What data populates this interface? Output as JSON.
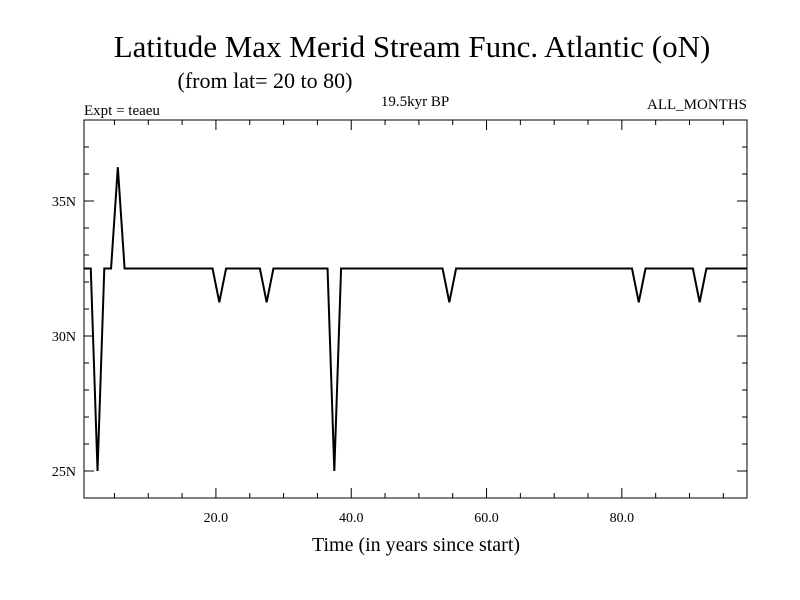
{
  "chart_data": {
    "type": "line",
    "title": "Latitude Max Merid Stream Func. Atlantic (oN)",
    "subtitle": "(from lat= 20 to 80)",
    "annotations": {
      "left": "Expt = teaeu",
      "center": "19.5kyr BP",
      "right": "ALL_MONTHS"
    },
    "xlabel": "Time (in years since start)",
    "ylabel": "",
    "xlim": [
      0.5,
      98.5
    ],
    "ylim": [
      24,
      38
    ],
    "x_ticks": [
      20,
      40,
      60,
      80
    ],
    "x_tick_labels": [
      "20.0",
      "40.0",
      "60.0",
      "80.0"
    ],
    "y_ticks": [
      25,
      30,
      35
    ],
    "y_tick_labels": [
      "25N",
      "30N",
      "35N"
    ],
    "grid": false,
    "series": [
      {
        "x": [
          0.5,
          1.5,
          2.5,
          3.5,
          4.5,
          5.5,
          6.5,
          7.5,
          8.5,
          9.5,
          10.5,
          11.5,
          12.5,
          13.5,
          14.5,
          15.5,
          16.5,
          17.5,
          18.5,
          19.5,
          20.5,
          21.5,
          22.5,
          23.5,
          24.5,
          25.5,
          26.5,
          27.5,
          28.5,
          29.5,
          30.5,
          31.5,
          32.5,
          33.5,
          34.5,
          35.5,
          36.5,
          37.5,
          38.5,
          39.5,
          40.5,
          41.5,
          42.5,
          43.5,
          44.5,
          45.5,
          46.5,
          47.5,
          48.5,
          49.5,
          50.5,
          51.5,
          52.5,
          53.5,
          54.5,
          55.5,
          56.5,
          57.5,
          58.5,
          59.5,
          60.5,
          61.5,
          62.5,
          63.5,
          64.5,
          65.5,
          66.5,
          67.5,
          68.5,
          69.5,
          70.5,
          71.5,
          72.5,
          73.5,
          74.5,
          75.5,
          76.5,
          77.5,
          78.5,
          79.5,
          80.5,
          81.5,
          82.5,
          83.5,
          84.5,
          85.5,
          86.5,
          87.5,
          88.5,
          89.5,
          90.5,
          91.5,
          92.5,
          93.5,
          94.5,
          95.5,
          96.5,
          97.5,
          98.5
        ],
        "y": [
          32.5,
          32.5,
          25.0,
          32.5,
          32.5,
          36.25,
          32.5,
          32.5,
          32.5,
          32.5,
          32.5,
          32.5,
          32.5,
          32.5,
          32.5,
          32.5,
          32.5,
          32.5,
          32.5,
          32.5,
          31.25,
          32.5,
          32.5,
          32.5,
          32.5,
          32.5,
          32.5,
          31.25,
          32.5,
          32.5,
          32.5,
          32.5,
          32.5,
          32.5,
          32.5,
          32.5,
          32.5,
          25.0,
          32.5,
          32.5,
          32.5,
          32.5,
          32.5,
          32.5,
          32.5,
          32.5,
          32.5,
          32.5,
          32.5,
          32.5,
          32.5,
          32.5,
          32.5,
          32.5,
          31.25,
          32.5,
          32.5,
          32.5,
          32.5,
          32.5,
          32.5,
          32.5,
          32.5,
          32.5,
          32.5,
          32.5,
          32.5,
          32.5,
          32.5,
          32.5,
          32.5,
          32.5,
          32.5,
          32.5,
          32.5,
          32.5,
          32.5,
          32.5,
          32.5,
          32.5,
          32.5,
          32.5,
          31.25,
          32.5,
          32.5,
          32.5,
          32.5,
          32.5,
          32.5,
          32.5,
          32.5,
          31.25,
          32.5,
          32.5,
          32.5,
          32.5,
          32.5,
          32.5,
          32.5
        ],
        "color": "#000000"
      }
    ]
  }
}
